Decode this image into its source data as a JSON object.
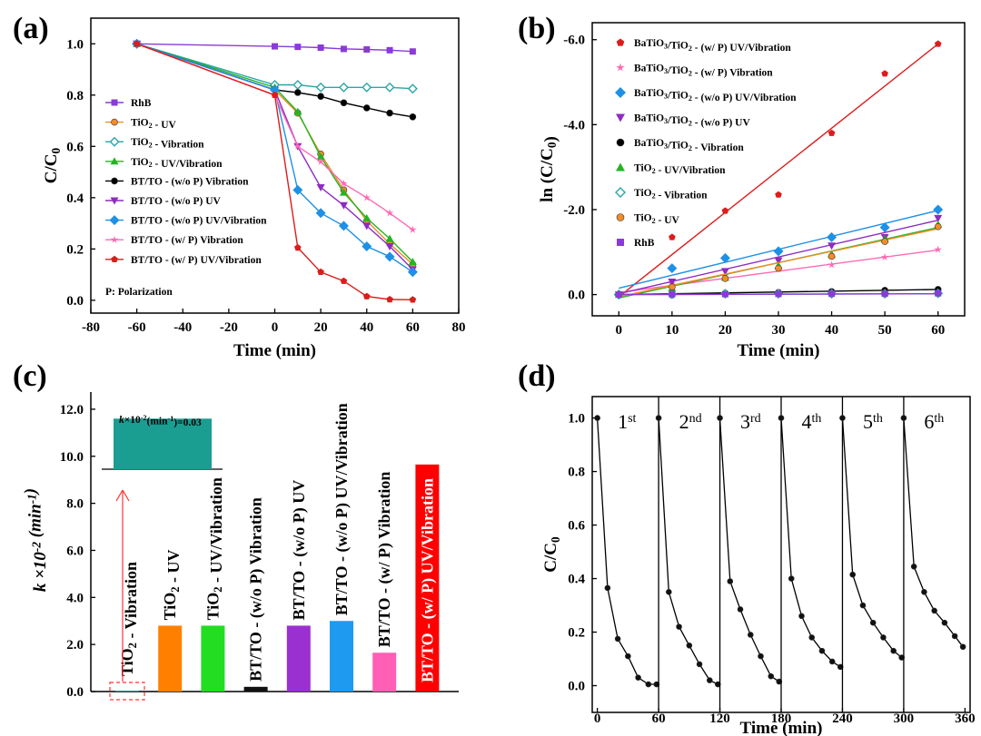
{
  "chart_data": [
    {
      "panel": "(a)",
      "type": "line",
      "xlabel": "Time (min)",
      "ylabel": "C/C0",
      "xlim": [
        -80,
        80
      ],
      "ylim": [
        -0.05,
        1.1
      ],
      "xticks": [
        -80,
        -60,
        -40,
        -20,
        0,
        20,
        40,
        60,
        80
      ],
      "yticks": [
        "0.0",
        "0.2",
        "0.4",
        "0.6",
        "0.8",
        "1.0"
      ],
      "x": [
        -60,
        0,
        10,
        20,
        30,
        40,
        50,
        60
      ],
      "series": [
        {
          "name": "RhB",
          "color": "#8a3bd6",
          "marker": "square",
          "values": [
            1.0,
            0.99,
            0.988,
            0.985,
            0.98,
            0.978,
            0.975,
            0.97
          ]
        },
        {
          "name": "TiO2 - UV",
          "color": "#f28c28",
          "marker": "circle",
          "values": [
            1.0,
            0.82,
            0.73,
            0.57,
            0.43,
            0.31,
            0.22,
            0.14
          ]
        },
        {
          "name": "TiO2 - Vibration",
          "color": "#2aa6a6",
          "marker": "diamond-open",
          "values": [
            1.0,
            0.84,
            0.84,
            0.83,
            0.83,
            0.83,
            0.83,
            0.825
          ]
        },
        {
          "name": "TiO2 - UV/Vibration",
          "color": "#22b522",
          "marker": "triangle",
          "values": [
            1.0,
            0.83,
            0.735,
            0.56,
            0.42,
            0.32,
            0.24,
            0.15
          ]
        },
        {
          "name": "BT/TO - (w/o P) Vibration",
          "color": "#000000",
          "marker": "circle",
          "values": [
            1.0,
            0.82,
            0.81,
            0.795,
            0.77,
            0.75,
            0.73,
            0.715
          ]
        },
        {
          "name": "BT/TO - (w/o P) UV",
          "color": "#8e2bc2",
          "marker": "triangle-down",
          "values": [
            1.0,
            0.82,
            0.6,
            0.44,
            0.37,
            0.29,
            0.21,
            0.12
          ]
        },
        {
          "name": "BT/TO - (w/o P) UV/Vibration",
          "color": "#1e90e6",
          "marker": "diamond",
          "values": [
            1.0,
            0.82,
            0.43,
            0.34,
            0.29,
            0.21,
            0.17,
            0.11
          ]
        },
        {
          "name": "BT/TO - (w/ P) Vibration",
          "color": "#ff69b4",
          "marker": "star",
          "values": [
            1.0,
            0.8,
            0.6,
            0.54,
            0.455,
            0.4,
            0.34,
            0.275
          ]
        },
        {
          "name": "BT/TO - (w/ P) UV/Vibration",
          "color": "#dd1c1c",
          "marker": "pentagon",
          "values": [
            1.0,
            0.8,
            0.205,
            0.11,
            0.075,
            0.015,
            0.003,
            0.002
          ]
        }
      ],
      "annotation": "P: Polarization"
    },
    {
      "panel": "(b)",
      "type": "scatter",
      "xlabel": "Time (min)",
      "ylabel": "ln (C/C0)",
      "xlim": [
        -5,
        65
      ],
      "ylim": [
        0.5,
        -6.4
      ],
      "xticks": [
        0,
        10,
        20,
        30,
        40,
        50,
        60
      ],
      "yticks": [
        "0.0",
        "-2.0",
        "-4.0",
        "-6.0"
      ],
      "x": [
        0,
        10,
        20,
        30,
        40,
        50,
        60
      ],
      "series": [
        {
          "name": "BaTiO3/TiO2 - (w/ P) UV/Vibration",
          "color": "#dd1c1c",
          "marker": "pentagon",
          "values": [
            0,
            -1.35,
            -1.97,
            -2.35,
            -3.8,
            -5.2,
            -5.9
          ],
          "fit": [
            0.05,
            -5.9
          ]
        },
        {
          "name": "BaTiO3/TiO2 - (w/ P) Vibration",
          "color": "#ff69b4",
          "marker": "star",
          "values": [
            0,
            -0.25,
            -0.45,
            -0.6,
            -0.7,
            -0.88,
            -1.06
          ],
          "fit": [
            -0.05,
            -1.05
          ]
        },
        {
          "name": "BaTiO3/TiO2 - (w/o P) UV/Vibration",
          "color": "#1e90e6",
          "marker": "diamond",
          "values": [
            0,
            -0.62,
            -0.86,
            -1.02,
            -1.35,
            -1.58,
            -2.0
          ],
          "fit": [
            -0.15,
            -1.98
          ]
        },
        {
          "name": "BaTiO3/TiO2 - (w/o P) UV",
          "color": "#8e2bc2",
          "marker": "triangle-down",
          "values": [
            0,
            -0.3,
            -0.55,
            -0.8,
            -1.15,
            -1.35,
            -1.8
          ],
          "fit": [
            -0.02,
            -1.75
          ]
        },
        {
          "name": "BaTiO3/TiO2 - Vibration",
          "color": "#000000",
          "marker": "circle",
          "values": [
            0,
            0.01,
            -0.03,
            -0.05,
            -0.07,
            -0.1,
            -0.12
          ],
          "fit": [
            0.0,
            -0.12
          ]
        },
        {
          "name": "TiO2 - UV/Vibration",
          "color": "#22b522",
          "marker": "triangle",
          "values": [
            0,
            -0.15,
            -0.4,
            -0.68,
            -0.95,
            -1.3,
            -1.65
          ],
          "fit": [
            0.08,
            -1.58
          ]
        },
        {
          "name": "TiO2 - Vibration",
          "color": "#2aa6a6",
          "marker": "diamond-open",
          "values": [
            0,
            -0.01,
            -0.02,
            -0.02,
            -0.02,
            -0.02,
            -0.03
          ],
          "fit": [
            0.0,
            -0.02
          ]
        },
        {
          "name": "TiO2 - UV",
          "color": "#f28c28",
          "marker": "circle",
          "values": [
            0,
            -0.18,
            -0.38,
            -0.62,
            -0.9,
            -1.25,
            -1.6
          ],
          "fit": [
            0.05,
            -1.55
          ]
        },
        {
          "name": "RhB",
          "color": "#8a3bd6",
          "marker": "square",
          "values": [
            0,
            -0.01,
            -0.01,
            -0.015,
            -0.02,
            -0.02,
            -0.03
          ],
          "fit": [
            0.0,
            -0.02
          ]
        }
      ]
    },
    {
      "panel": "(c)",
      "type": "bar",
      "xlabel": "",
      "ylabel": "k ×10-2 (min-1)",
      "ylim": [
        0,
        13
      ],
      "yticks": [
        "0.0",
        "2.0",
        "4.0",
        "6.0",
        "8.0",
        "10.0",
        "12.0"
      ],
      "categories": [
        "TiO2 - Vibration",
        "TiO2 - UV",
        "TiO2 - UV/Vibration",
        "BT/TO - (w/o P) Vibration",
        "BT/TO - (w/o P) UV",
        "BT/TO - (w/o P) UV/Vibration",
        "BT/TO - (w/ P) Vibration",
        "BT/TO - (w/ P) UV/Vibration"
      ],
      "values": [
        0.03,
        2.8,
        2.8,
        0.2,
        2.8,
        3.0,
        1.65,
        9.65
      ],
      "colors": [
        "#1a9e92",
        "#ff8000",
        "#22dd22",
        "#111111",
        "#9b30d0",
        "#1e9af0",
        "#ff5fb4",
        "#ff0000"
      ],
      "inset_label": "k×10-2(min-1)=0.03",
      "inset_value": 11.6
    },
    {
      "panel": "(d)",
      "type": "line",
      "xlabel": "Time (min)",
      "ylabel": "C/C0",
      "xlim": [
        -5,
        365
      ],
      "ylim": [
        -0.1,
        1.08
      ],
      "xticks": [
        0,
        60,
        120,
        180,
        240,
        300,
        360
      ],
      "yticks": [
        "0.0",
        "0.2",
        "0.4",
        "0.6",
        "0.8",
        "1.0"
      ],
      "cycle_period": 60,
      "cycle_x": [
        0,
        10,
        20,
        30,
        40,
        50,
        58
      ],
      "cycles": [
        {
          "label": "1",
          "sup": "st",
          "values": [
            1.0,
            0.365,
            0.175,
            0.11,
            0.03,
            0.005,
            0.005
          ]
        },
        {
          "label": "2",
          "sup": "nd",
          "values": [
            1.0,
            0.35,
            0.22,
            0.15,
            0.08,
            0.02,
            0.005
          ]
        },
        {
          "label": "3",
          "sup": "rd",
          "values": [
            1.0,
            0.39,
            0.285,
            0.19,
            0.11,
            0.035,
            0.015
          ]
        },
        {
          "label": "4",
          "sup": "th",
          "values": [
            1.0,
            0.4,
            0.26,
            0.18,
            0.13,
            0.09,
            0.07
          ]
        },
        {
          "label": "5",
          "sup": "th",
          "values": [
            1.0,
            0.415,
            0.3,
            0.235,
            0.18,
            0.13,
            0.105
          ]
        },
        {
          "label": "6",
          "sup": "th",
          "values": [
            1.0,
            0.445,
            0.35,
            0.28,
            0.235,
            0.185,
            0.145
          ]
        }
      ]
    }
  ]
}
